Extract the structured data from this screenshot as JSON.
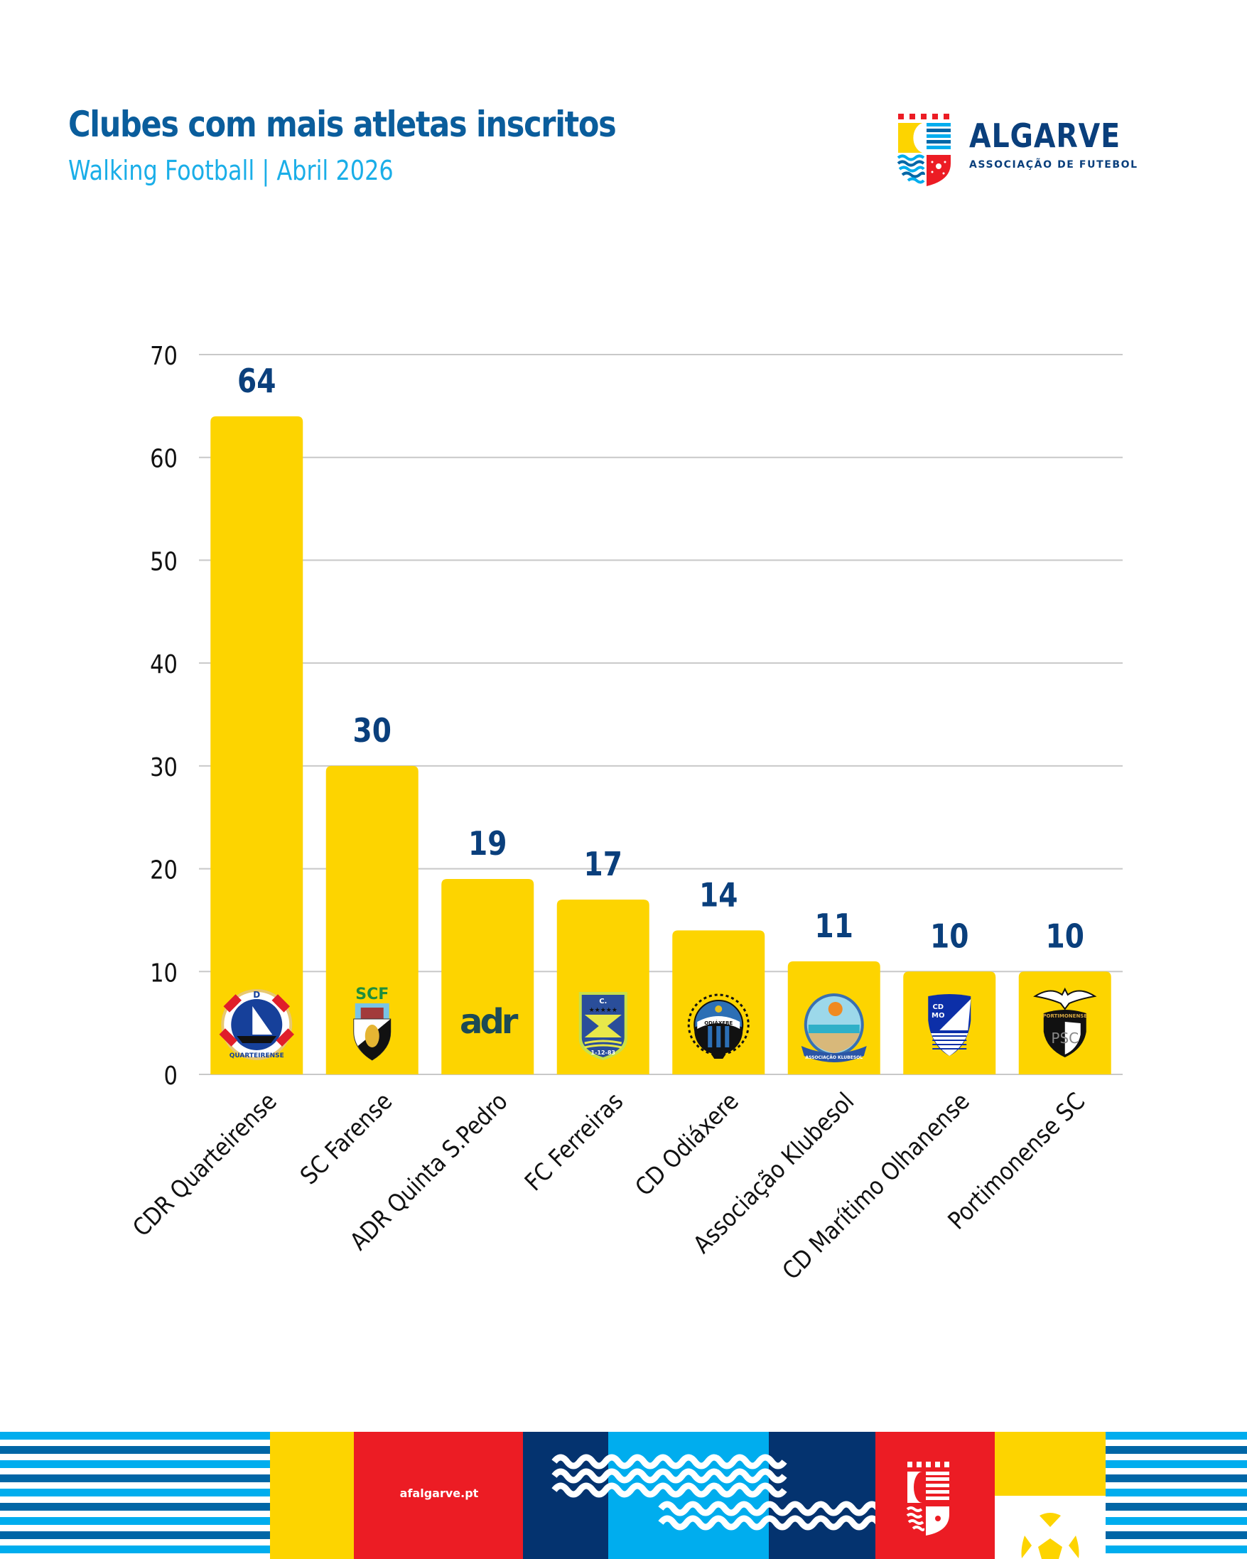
{
  "header": {
    "title": "Clubes com mais atletas inscritos",
    "subtitle": "Walking Football | Abril 2026"
  },
  "logo": {
    "name": "ALGARVE",
    "tagline": "ASSOCIAÇÃO DE FUTEBOL",
    "icon": "algarve-shield-icon"
  },
  "footer": {
    "url": "afalgarve.pt"
  },
  "colors": {
    "title": "#0a5d9c",
    "subtitle": "#1aaee8",
    "bar": "#fdd400",
    "value_label": "#0a3f7c",
    "grid": "#c8c8c8",
    "navy": "#04336f",
    "sky": "#00adee",
    "blue": "#0066a6",
    "red": "#ec1c24",
    "yellow": "#fdd400"
  },
  "chart_data": {
    "type": "bar",
    "title": "Clubes com mais atletas inscritos",
    "subtitle": "Walking Football | Abril 2026",
    "xlabel": "",
    "ylabel": "",
    "ylim": [
      0,
      70
    ],
    "yticks": [
      0,
      10,
      20,
      30,
      40,
      50,
      60,
      70
    ],
    "grid": true,
    "legend": "none",
    "categories": [
      "CDR Quarteirense",
      "SC Farense",
      "ADR Quinta S.Pedro",
      "FC Ferreiras",
      "CD Odiáxere",
      "Associação Klubesol",
      "CD Marítimo Olhanense",
      "Portimonense SC"
    ],
    "values": [
      64,
      30,
      19,
      17,
      14,
      11,
      10,
      10
    ],
    "bar_icons": [
      "cdr-quarteirense-crest-icon",
      "sc-farense-crest-icon",
      "adr-logo-icon",
      "fc-ferreiras-crest-icon",
      "cd-odiaxere-crest-icon",
      "klubesol-crest-icon",
      "cd-maritimo-olhanense-crest-icon",
      "portimonense-crest-icon"
    ],
    "crest_text": {
      "adr": "adr",
      "scf": "SCF",
      "ferreiras_top": "C.",
      "ferreiras_ff": "F.      F.",
      "ferreiras_date": "1-12-83",
      "odiaxere": "ODIÁXERE",
      "cdmo": "CD MO",
      "portimonense": "PORTIMONENSE",
      "psc": "PSC",
      "klubesol": "ASSOCIAÇÃO KLUBESOL",
      "cdr": "CDR",
      "quarteirense": "QUARTEIRENSE"
    }
  }
}
